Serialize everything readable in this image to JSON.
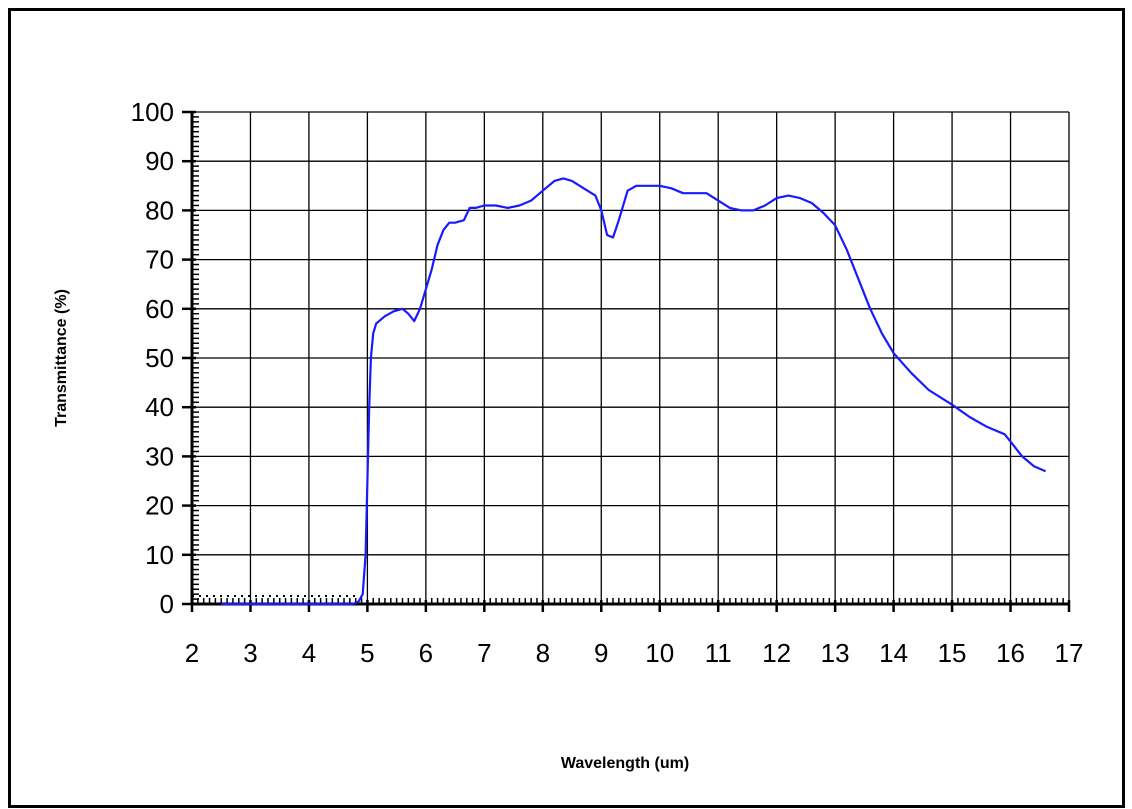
{
  "chart_data": {
    "type": "line",
    "title": "",
    "xlabel": "Wavelength (um)",
    "ylabel": "Transmittance (%)",
    "xlim": [
      2,
      17
    ],
    "ylim": [
      0,
      100
    ],
    "x_ticks": [
      "2",
      "3",
      "4",
      "5",
      "6",
      "7",
      "8",
      "9",
      "10",
      "11",
      "12",
      "13",
      "14",
      "15",
      "16",
      "17"
    ],
    "y_ticks": [
      "0",
      "10",
      "20",
      "30",
      "40",
      "50",
      "60",
      "70",
      "80",
      "90",
      "100"
    ],
    "grid": true,
    "line_color": "#1a1aff",
    "series": [
      {
        "x": [
          2.5,
          3.0,
          3.5,
          4.0,
          4.5,
          4.75,
          4.85,
          4.92,
          4.97,
          5.0,
          5.03,
          5.06,
          5.1,
          5.15,
          5.2,
          5.3,
          5.45,
          5.6,
          5.7,
          5.8,
          5.9,
          6.0,
          6.1,
          6.2,
          6.3,
          6.4,
          6.5,
          6.65,
          6.75,
          6.85,
          7.0,
          7.2,
          7.4,
          7.6,
          7.8,
          8.0,
          8.2,
          8.35,
          8.5,
          8.7,
          8.9,
          9.0,
          9.1,
          9.2,
          9.3,
          9.45,
          9.6,
          9.8,
          10.0,
          10.2,
          10.4,
          10.6,
          10.8,
          11.0,
          11.2,
          11.4,
          11.6,
          11.8,
          12.0,
          12.2,
          12.4,
          12.6,
          12.8,
          13.0,
          13.2,
          13.4,
          13.6,
          13.8,
          14.0,
          14.3,
          14.6,
          15.0,
          15.3,
          15.6,
          15.9,
          16.0,
          16.2,
          16.4,
          16.6
        ],
        "y": [
          0,
          0,
          0,
          0,
          0,
          0,
          0.5,
          2,
          10,
          25,
          40,
          50,
          55,
          57,
          57.5,
          58.5,
          59.5,
          60,
          59,
          57.5,
          60,
          64,
          68,
          73,
          76,
          77.5,
          77.5,
          78,
          80.5,
          80.5,
          81,
          81,
          80.5,
          81,
          82,
          84,
          86,
          86.5,
          86,
          84.5,
          83,
          80,
          75,
          74.5,
          78,
          84,
          85,
          85,
          85,
          84.5,
          83.5,
          83.5,
          83.5,
          82,
          80.5,
          80,
          80,
          81,
          82.5,
          83,
          82.5,
          81.5,
          79.5,
          77,
          72,
          66,
          60,
          55,
          51,
          47,
          43.5,
          40.5,
          38,
          36,
          34.5,
          33,
          30,
          28,
          27
        ]
      }
    ]
  }
}
